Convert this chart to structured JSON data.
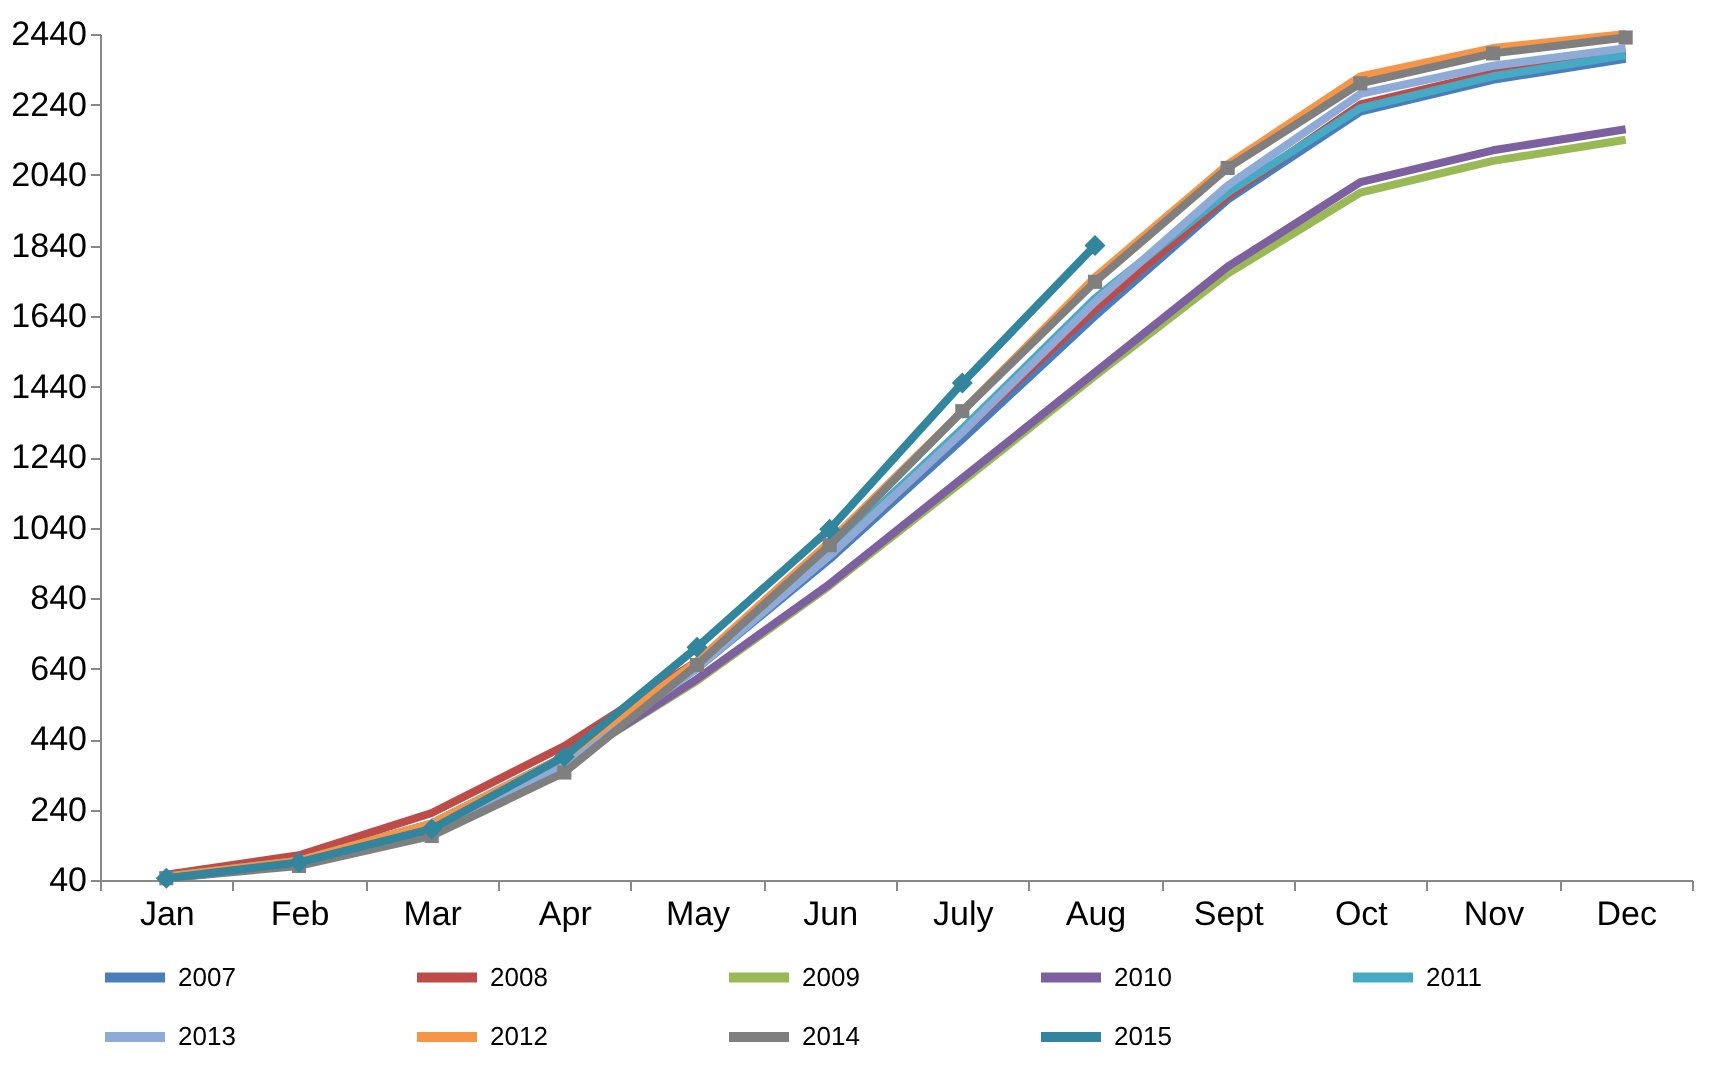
{
  "chart_data": {
    "type": "line",
    "categories": [
      "Jan",
      "Feb",
      "Mar",
      "Apr",
      "May",
      "Jun",
      "July",
      "Aug",
      "Sept",
      "Oct",
      "Nov",
      "Dec"
    ],
    "ylim": [
      40,
      2440
    ],
    "yticks": [
      40,
      240,
      440,
      640,
      840,
      1040,
      1240,
      1440,
      1640,
      1840,
      2040,
      2240,
      2440
    ],
    "grid": false,
    "legend": "bottom",
    "line_style": "solid",
    "series": [
      {
        "name": "2007",
        "color": "#4a7ebb",
        "values": [
          50,
          95,
          200,
          390,
          640,
          950,
          1290,
          1640,
          1970,
          2220,
          2310,
          2370
        ]
      },
      {
        "name": "2008",
        "color": "#be4b48",
        "values": [
          55,
          110,
          230,
          420,
          660,
          960,
          1310,
          1660,
          1980,
          2240,
          2330,
          2390
        ]
      },
      {
        "name": "2009",
        "color": "#98b954",
        "values": [
          null,
          null,
          180,
          370,
          605,
          875,
          1170,
          1470,
          1760,
          1990,
          2080,
          2140
        ]
      },
      {
        "name": "2010",
        "color": "#7d60a0",
        "values": [
          45,
          85,
          180,
          370,
          610,
          880,
          1180,
          1480,
          1780,
          2020,
          2110,
          2170
        ]
      },
      {
        "name": "2011",
        "color": "#46aac5",
        "values": [
          50,
          95,
          200,
          390,
          650,
          970,
          1320,
          1690,
          1990,
          2230,
          2320,
          2380
        ]
      },
      {
        "name": "2013",
        "color": "#8eaad6",
        "values": [
          45,
          85,
          180,
          370,
          640,
          960,
          1310,
          1680,
          2010,
          2270,
          2350,
          2400
        ]
      },
      {
        "name": "2012",
        "color": "#f69546",
        "values": [
          50,
          95,
          200,
          390,
          660,
          1000,
          1370,
          1750,
          2070,
          2320,
          2400,
          2440
        ]
      },
      {
        "name": "2014",
        "color": "#7f7f7f",
        "marker": "square",
        "values": [
          45,
          80,
          165,
          345,
          650,
          990,
          1370,
          1737,
          2060,
          2300,
          2385,
          2430
        ]
      },
      {
        "name": "2015",
        "color": "#31859c",
        "marker": "diamond",
        "values": [
          45,
          90,
          185,
          390,
          700,
          1035,
          1450,
          1840,
          null,
          null,
          null,
          null
        ]
      }
    ]
  }
}
